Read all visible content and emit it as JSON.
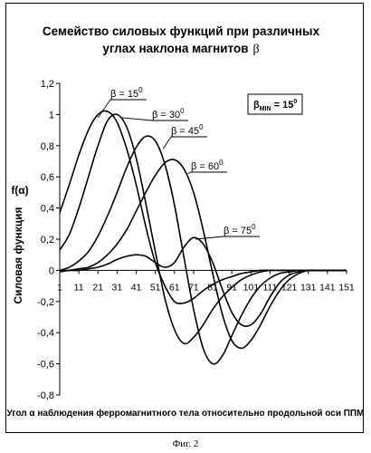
{
  "chart_data": {
    "type": "line",
    "title_line1": "Семейство силовых функций при различных",
    "title_line2": "углах наклона магнитов",
    "title_symbol": "β",
    "ylabel_symbol": "f(α)",
    "ylabel": "Силовая функция",
    "xlabel": "Угол α наблюдения ферромагнитного тела относительно продольной оси ППМ",
    "ylim": [
      -0.8,
      1.2
    ],
    "yticks": [
      -0.8,
      -0.6,
      -0.4,
      -0.2,
      0,
      0.2,
      0.4,
      0.6,
      0.8,
      1,
      1.2
    ],
    "ytick_labels": [
      "-0,8",
      "-0,6",
      "-0,4",
      "-0,2",
      "0",
      "0,2",
      "0,4",
      "0,6",
      "0,8",
      "1",
      "1,2"
    ],
    "xlim": [
      1,
      151
    ],
    "xticks": [
      1,
      11,
      21,
      31,
      41,
      51,
      61,
      71,
      81,
      91,
      101,
      111,
      121,
      131,
      141,
      151
    ],
    "grid": false,
    "annotation": {
      "text": "βMIN = 15 0",
      "main": "β",
      "sub": "MIN",
      "eq": " = 15",
      "sup": "0"
    },
    "series": [
      {
        "name": "β = 15",
        "sup": "0",
        "x": [
          1,
          6,
          11,
          16,
          21,
          26,
          31,
          36,
          41,
          46,
          51,
          56,
          61,
          66,
          71,
          76,
          81,
          86,
          91,
          96,
          101,
          106,
          111,
          116,
          121,
          126,
          131,
          136,
          141,
          146,
          151
        ],
        "y": [
          0.37,
          0.55,
          0.74,
          0.9,
          1.0,
          1.02,
          0.95,
          0.78,
          0.55,
          0.28,
          0.05,
          -0.1,
          -0.2,
          -0.21,
          -0.18,
          -0.13,
          -0.09,
          -0.06,
          -0.04,
          -0.02,
          -0.01,
          0,
          0,
          0,
          0,
          0,
          0,
          0,
          0,
          0,
          0
        ]
      },
      {
        "name": "β = 30",
        "sup": "0",
        "x": [
          1,
          6,
          11,
          16,
          21,
          26,
          31,
          36,
          41,
          46,
          51,
          56,
          61,
          66,
          71,
          76,
          81,
          86,
          91,
          96,
          101,
          106,
          111,
          116,
          121,
          126,
          131,
          136,
          141,
          146,
          151
        ],
        "y": [
          0.13,
          0.23,
          0.4,
          0.6,
          0.8,
          0.96,
          1.0,
          0.92,
          0.72,
          0.43,
          0.12,
          -0.18,
          -0.38,
          -0.47,
          -0.43,
          -0.35,
          -0.25,
          -0.17,
          -0.11,
          -0.06,
          -0.03,
          -0.01,
          0,
          0,
          0,
          0,
          0,
          0,
          0,
          0,
          0
        ]
      },
      {
        "name": "β = 45",
        "sup": "0",
        "x": [
          1,
          6,
          11,
          16,
          21,
          26,
          31,
          36,
          41,
          46,
          51,
          56,
          61,
          66,
          71,
          76,
          81,
          86,
          91,
          96,
          101,
          106,
          111,
          116,
          121,
          126,
          131,
          136,
          141,
          146,
          151
        ],
        "y": [
          0.0,
          0.02,
          0.06,
          0.12,
          0.22,
          0.35,
          0.5,
          0.66,
          0.79,
          0.86,
          0.83,
          0.68,
          0.42,
          0.08,
          -0.25,
          -0.5,
          -0.6,
          -0.55,
          -0.42,
          -0.29,
          -0.18,
          -0.1,
          -0.05,
          -0.02,
          -0.01,
          0,
          0,
          0,
          0,
          0,
          0
        ]
      },
      {
        "name": "β = 60",
        "sup": "0",
        "x": [
          1,
          6,
          11,
          16,
          21,
          26,
          31,
          36,
          41,
          46,
          51,
          56,
          61,
          66,
          71,
          76,
          81,
          86,
          91,
          96,
          101,
          106,
          111,
          116,
          121,
          126,
          131,
          136,
          141,
          146,
          151
        ],
        "y": [
          -0.01,
          0.0,
          0.01,
          0.02,
          0.05,
          0.1,
          0.17,
          0.26,
          0.38,
          0.5,
          0.61,
          0.69,
          0.71,
          0.65,
          0.5,
          0.26,
          -0.02,
          -0.28,
          -0.45,
          -0.5,
          -0.45,
          -0.35,
          -0.23,
          -0.13,
          -0.06,
          -0.02,
          0,
          0,
          0,
          0,
          0
        ]
      },
      {
        "name": "β = 75",
        "sup": "0",
        "x": [
          1,
          6,
          11,
          16,
          21,
          26,
          31,
          36,
          41,
          46,
          51,
          56,
          61,
          66,
          71,
          76,
          81,
          86,
          91,
          96,
          101,
          106,
          111,
          116,
          121,
          126,
          131,
          136,
          141,
          146,
          151
        ],
        "y": [
          0,
          0.0,
          0.0,
          0.01,
          0.02,
          0.04,
          0.07,
          0.09,
          0.1,
          0.09,
          0.05,
          0.02,
          0.05,
          0.15,
          0.21,
          0.17,
          0.05,
          -0.12,
          -0.27,
          -0.35,
          -0.35,
          -0.28,
          -0.17,
          -0.08,
          -0.03,
          -0.01,
          0,
          0,
          0,
          0,
          0
        ]
      }
    ]
  },
  "figure_caption": "Фиг. 2"
}
